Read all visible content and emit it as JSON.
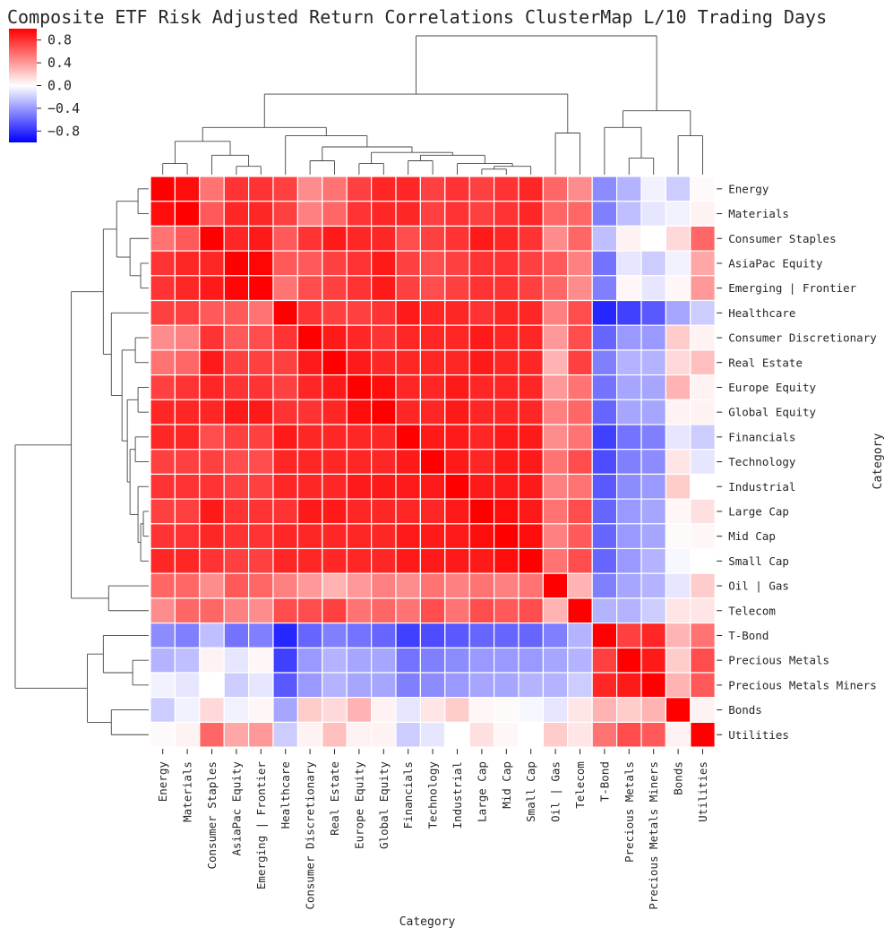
{
  "chart_data": {
    "type": "heatmap",
    "title": "Composite ETF Risk Adjusted Return Correlations ClusterMap L/10 Trading Days",
    "xlabel": "Category",
    "ylabel": "Category",
    "colormap": "bwr",
    "vmin": -1,
    "vmax": 1,
    "colorbar": {
      "ticks": [
        0.8,
        0.4,
        0.0,
        -0.4,
        -0.8
      ],
      "tick_labels": [
        "0.8",
        "0.4",
        "0.0",
        "−0.4",
        "−0.8"
      ],
      "colors": {
        "low": "#0000ff",
        "mid": "#ffffff",
        "high": "#ff0000"
      }
    },
    "categories": [
      "Energy",
      "Materials",
      "Consumer Staples",
      "AsiaPac Equity",
      "Emerging | Frontier",
      "Healthcare",
      "Consumer Discretionary",
      "Real Estate",
      "Europe Equity",
      "Global Equity",
      "Financials",
      "Technology",
      "Industrial",
      "Large Cap",
      "Mid Cap",
      "Small Cap",
      "Oil | Gas",
      "Telecom",
      "T-Bond",
      "Precious Metals",
      "Precious Metals Miners",
      "Bonds",
      "Utilities"
    ],
    "matrix": [
      [
        1.0,
        0.95,
        0.55,
        0.8,
        0.8,
        0.75,
        0.45,
        0.55,
        0.75,
        0.85,
        0.85,
        0.75,
        0.8,
        0.75,
        0.8,
        0.85,
        0.6,
        0.45,
        -0.45,
        -0.3,
        -0.05,
        -0.2,
        0.02
      ],
      [
        0.95,
        1.0,
        0.65,
        0.85,
        0.85,
        0.75,
        0.5,
        0.6,
        0.8,
        0.85,
        0.85,
        0.75,
        0.8,
        0.75,
        0.8,
        0.85,
        0.6,
        0.6,
        -0.5,
        -0.25,
        -0.1,
        -0.05,
        0.05
      ],
      [
        0.55,
        0.65,
        1.0,
        0.85,
        0.9,
        0.65,
        0.8,
        0.9,
        0.85,
        0.85,
        0.7,
        0.75,
        0.8,
        0.9,
        0.85,
        0.8,
        0.45,
        0.6,
        -0.25,
        0.05,
        0.0,
        0.15,
        0.6
      ],
      [
        0.8,
        0.85,
        0.85,
        1.0,
        0.98,
        0.65,
        0.65,
        0.75,
        0.8,
        0.9,
        0.75,
        0.7,
        0.75,
        0.8,
        0.8,
        0.75,
        0.65,
        0.5,
        -0.55,
        -0.1,
        -0.2,
        -0.05,
        0.35
      ],
      [
        0.8,
        0.85,
        0.9,
        0.98,
        1.0,
        0.55,
        0.7,
        0.75,
        0.8,
        0.9,
        0.75,
        0.7,
        0.75,
        0.8,
        0.8,
        0.75,
        0.6,
        0.45,
        -0.5,
        0.03,
        -0.1,
        0.03,
        0.4
      ],
      [
        0.75,
        0.75,
        0.65,
        0.65,
        0.55,
        1.0,
        0.8,
        0.75,
        0.75,
        0.8,
        0.9,
        0.85,
        0.85,
        0.8,
        0.85,
        0.85,
        0.5,
        0.7,
        -0.85,
        -0.75,
        -0.65,
        -0.35,
        -0.2
      ],
      [
        0.45,
        0.5,
        0.8,
        0.65,
        0.7,
        0.8,
        1.0,
        0.9,
        0.85,
        0.8,
        0.85,
        0.85,
        0.85,
        0.9,
        0.85,
        0.85,
        0.4,
        0.7,
        -0.6,
        -0.4,
        -0.4,
        0.2,
        0.05
      ],
      [
        0.55,
        0.6,
        0.9,
        0.75,
        0.75,
        0.75,
        0.9,
        1.0,
        0.9,
        0.85,
        0.85,
        0.85,
        0.85,
        0.9,
        0.85,
        0.85,
        0.3,
        0.75,
        -0.5,
        -0.3,
        -0.3,
        0.15,
        0.25
      ],
      [
        0.75,
        0.8,
        0.85,
        0.8,
        0.8,
        0.75,
        0.85,
        0.9,
        1.0,
        0.95,
        0.85,
        0.85,
        0.9,
        0.85,
        0.85,
        0.85,
        0.4,
        0.55,
        -0.55,
        -0.35,
        -0.35,
        0.3,
        0.05
      ],
      [
        0.85,
        0.85,
        0.85,
        0.9,
        0.9,
        0.8,
        0.8,
        0.85,
        0.95,
        1.0,
        0.85,
        0.85,
        0.9,
        0.85,
        0.85,
        0.85,
        0.5,
        0.6,
        -0.6,
        -0.35,
        -0.35,
        0.05,
        0.05
      ],
      [
        0.85,
        0.85,
        0.7,
        0.75,
        0.75,
        0.9,
        0.85,
        0.85,
        0.85,
        0.85,
        1.0,
        0.9,
        0.9,
        0.85,
        0.9,
        0.9,
        0.45,
        0.55,
        -0.75,
        -0.55,
        -0.5,
        -0.1,
        -0.2
      ],
      [
        0.75,
        0.75,
        0.75,
        0.7,
        0.7,
        0.85,
        0.85,
        0.85,
        0.85,
        0.85,
        0.9,
        1.0,
        0.9,
        0.85,
        0.9,
        0.9,
        0.55,
        0.7,
        -0.7,
        -0.5,
        -0.45,
        0.1,
        -0.1
      ],
      [
        0.8,
        0.8,
        0.8,
        0.75,
        0.75,
        0.85,
        0.85,
        0.85,
        0.9,
        0.9,
        0.9,
        0.9,
        1.0,
        0.9,
        0.9,
        0.9,
        0.5,
        0.55,
        -0.65,
        -0.45,
        -0.4,
        0.2,
        0.0
      ],
      [
        0.75,
        0.75,
        0.9,
        0.8,
        0.8,
        0.8,
        0.9,
        0.9,
        0.85,
        0.85,
        0.85,
        0.85,
        0.9,
        1.0,
        0.95,
        0.9,
        0.55,
        0.7,
        -0.6,
        -0.4,
        -0.35,
        0.03,
        0.12
      ],
      [
        0.8,
        0.8,
        0.85,
        0.8,
        0.8,
        0.85,
        0.85,
        0.85,
        0.85,
        0.85,
        0.9,
        0.9,
        0.9,
        0.95,
        1.0,
        0.95,
        0.5,
        0.65,
        -0.6,
        -0.4,
        -0.35,
        0.02,
        0.03
      ],
      [
        0.85,
        0.85,
        0.8,
        0.75,
        0.75,
        0.85,
        0.85,
        0.85,
        0.85,
        0.85,
        0.9,
        0.9,
        0.9,
        0.9,
        0.95,
        1.0,
        0.55,
        0.7,
        -0.6,
        -0.4,
        -0.3,
        -0.03,
        0.0
      ],
      [
        0.6,
        0.6,
        0.45,
        0.65,
        0.6,
        0.5,
        0.4,
        0.3,
        0.4,
        0.5,
        0.45,
        0.55,
        0.5,
        0.55,
        0.5,
        0.55,
        1.0,
        0.3,
        -0.5,
        -0.35,
        -0.3,
        -0.1,
        0.2
      ],
      [
        0.45,
        0.6,
        0.6,
        0.5,
        0.45,
        0.7,
        0.7,
        0.75,
        0.55,
        0.6,
        0.55,
        0.7,
        0.55,
        0.7,
        0.65,
        0.7,
        0.3,
        1.0,
        -0.3,
        -0.3,
        -0.2,
        0.1,
        0.1
      ],
      [
        -0.45,
        -0.5,
        -0.25,
        -0.55,
        -0.5,
        -0.85,
        -0.6,
        -0.5,
        -0.55,
        -0.6,
        -0.75,
        -0.7,
        -0.65,
        -0.6,
        -0.6,
        -0.6,
        -0.5,
        -0.3,
        1.0,
        0.75,
        0.85,
        0.3,
        0.55
      ],
      [
        -0.3,
        -0.25,
        0.05,
        -0.1,
        0.03,
        -0.75,
        -0.4,
        -0.3,
        -0.35,
        -0.35,
        -0.55,
        -0.5,
        -0.45,
        -0.4,
        -0.4,
        -0.4,
        -0.35,
        -0.3,
        0.75,
        1.0,
        0.9,
        0.2,
        0.7
      ],
      [
        -0.05,
        -0.1,
        0.0,
        -0.2,
        -0.1,
        -0.65,
        -0.4,
        -0.3,
        -0.35,
        -0.35,
        -0.5,
        -0.45,
        -0.4,
        -0.35,
        -0.35,
        -0.3,
        -0.3,
        -0.2,
        0.85,
        0.9,
        1.0,
        0.3,
        0.65
      ],
      [
        -0.2,
        -0.05,
        0.15,
        -0.05,
        0.03,
        -0.35,
        0.2,
        0.15,
        0.3,
        0.05,
        -0.1,
        0.1,
        0.2,
        0.03,
        0.02,
        -0.03,
        -0.1,
        0.1,
        0.3,
        0.2,
        0.3,
        1.0,
        0.05
      ],
      [
        0.02,
        0.05,
        0.6,
        0.35,
        0.4,
        -0.2,
        0.05,
        0.25,
        0.05,
        0.05,
        -0.2,
        -0.1,
        0.0,
        0.12,
        0.03,
        0.0,
        0.2,
        0.1,
        0.55,
        0.7,
        0.65,
        0.05,
        1.0
      ]
    ]
  }
}
